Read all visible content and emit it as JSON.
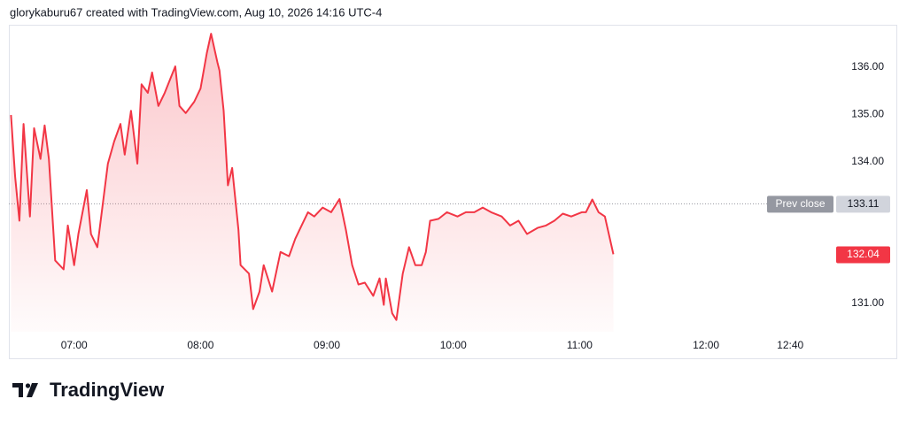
{
  "chart_data": {
    "type": "line",
    "title": "glorykaburu67 created with TradingView.com, Aug 10, 2026 14:16 UTC-4",
    "source": "TradingView",
    "x": [
      390,
      392,
      394,
      396,
      399,
      401,
      404,
      406,
      408,
      411,
      415,
      417,
      420,
      422,
      426,
      428,
      431,
      436,
      439,
      442,
      444,
      447,
      450,
      452,
      455,
      457,
      460,
      463,
      468,
      470,
      473,
      477,
      480,
      483,
      485,
      488,
      489,
      491,
      493,
      495,
      498,
      499,
      503,
      505,
      508,
      510,
      514,
      518,
      522,
      525,
      528,
      531,
      534,
      538,
      542,
      546,
      549,
      552,
      555,
      558,
      562,
      565,
      567,
      568,
      571,
      573,
      576,
      579,
      582,
      585,
      587,
      589,
      593,
      597,
      602,
      606,
      610,
      614,
      618,
      623,
      627,
      631,
      635,
      640,
      644,
      648,
      652,
      656,
      661,
      663,
      666,
      669,
      672,
      676
    ],
    "series": [
      {
        "color": "#f23645",
        "values": [
          134.99,
          133.68,
          132.75,
          134.8,
          132.84,
          134.71,
          134.06,
          134.77,
          134.06,
          131.91,
          131.72,
          132.65,
          131.81,
          132.47,
          133.4,
          132.47,
          132.19,
          133.96,
          134.43,
          134.8,
          134.15,
          135.08,
          133.96,
          135.64,
          135.46,
          135.89,
          135.18,
          135.46,
          136.02,
          135.18,
          135.03,
          135.27,
          135.55,
          136.3,
          136.71,
          136.11,
          135.93,
          135.08,
          133.5,
          133.87,
          132.56,
          131.81,
          131.63,
          130.88,
          131.25,
          131.81,
          131.25,
          132.09,
          132.0,
          132.37,
          132.65,
          132.93,
          132.84,
          133.03,
          132.93,
          133.21,
          132.56,
          131.81,
          131.4,
          131.44,
          131.16,
          131.53,
          130.97,
          131.53,
          130.79,
          130.65,
          131.63,
          132.19,
          131.81,
          131.81,
          132.09,
          132.75,
          132.79,
          132.93,
          132.84,
          132.93,
          132.93,
          133.03,
          132.93,
          132.84,
          132.65,
          132.75,
          132.47,
          132.6,
          132.65,
          132.75,
          132.9,
          132.84,
          132.93,
          132.93,
          133.2,
          132.93,
          132.84,
          132.04
        ]
      }
    ],
    "prev_close": {
      "label": "Prev close",
      "value": 133.11
    },
    "xlim": [
      389,
      778
    ],
    "xticks": [
      {
        "value": 420,
        "label": "07:00"
      },
      {
        "value": 480,
        "label": "08:00"
      },
      {
        "value": 540,
        "label": "09:00"
      },
      {
        "value": 600,
        "label": "10:00"
      },
      {
        "value": 660,
        "label": "11:00"
      },
      {
        "value": 720,
        "label": "12:00"
      },
      {
        "value": 760,
        "label": "12:40"
      }
    ],
    "ylim": [
      130.4,
      136.9
    ],
    "yticks": [
      {
        "value": 131,
        "label": "131.00"
      },
      {
        "value": 134,
        "label": "134.00"
      },
      {
        "value": 135,
        "label": "135.00"
      },
      {
        "value": 136,
        "label": "136.00"
      }
    ]
  }
}
